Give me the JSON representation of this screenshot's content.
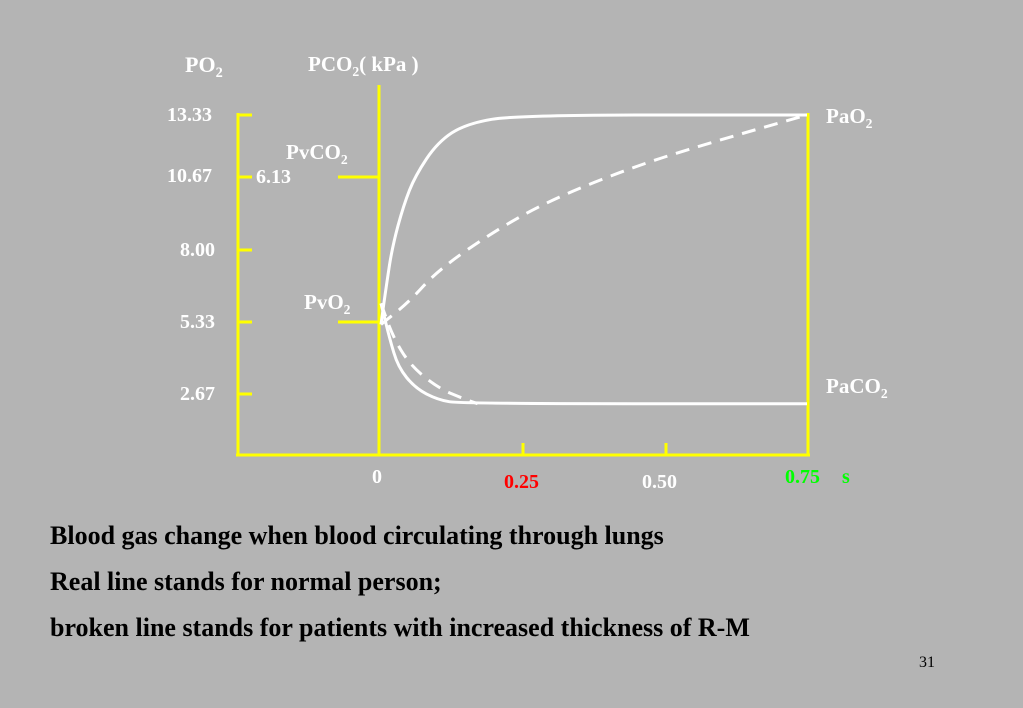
{
  "axes": {
    "po2_label": "PO",
    "po2_sub": "2",
    "pco2_label_a": "PCO",
    "pco2_sub": "2",
    "pco2_label_b": "( kPa )",
    "po2_ticks": [
      "13.33",
      "10.67",
      "8.00",
      "5.33",
      "2.67"
    ],
    "pco2_tick": "6.13",
    "time_ticks": [
      {
        "label": "0",
        "color": "#ffffff"
      },
      {
        "label": "0.25",
        "color": "#ff0000"
      },
      {
        "label": "0.50",
        "color": "#ffffff"
      },
      {
        "label": "0.75",
        "color": "#00ff00"
      }
    ],
    "time_unit": "s",
    "time_unit_color": "#00ff00"
  },
  "curve_labels": {
    "pvco2_a": "PvCO",
    "pvco2_sub": "2",
    "pvo2_a": "PvO",
    "pvo2_sub": "2",
    "pao2_a": "PaO",
    "pao2_sub": "2",
    "paco2_a": "PaCO",
    "paco2_sub": "2"
  },
  "colors": {
    "background": "#b4b4b4",
    "axis": "#ffff00",
    "curves": "#ffffff",
    "caption": "#000000"
  },
  "chart_data": {
    "type": "line",
    "x_unit": "s",
    "y_left_unit": "kPa",
    "x_ticks": [
      0,
      0.25,
      0.5,
      0.75
    ],
    "series": [
      {
        "name": "PaO2",
        "style": "solid",
        "points": [
          [
            0,
            5.33
          ],
          [
            0.01,
            6.9
          ],
          [
            0.02,
            8.3
          ],
          [
            0.04,
            9.9
          ],
          [
            0.06,
            11.0
          ],
          [
            0.1,
            12.3
          ],
          [
            0.15,
            13.0
          ],
          [
            0.24,
            13.33
          ],
          [
            0.75,
            13.33
          ]
        ]
      },
      {
        "name": "PaCO2",
        "style": "solid",
        "points": [
          [
            0,
            6.13
          ],
          [
            0.015,
            4.8
          ],
          [
            0.03,
            3.7
          ],
          [
            0.06,
            2.9
          ],
          [
            0.1,
            2.45
          ],
          [
            0.14,
            2.3
          ],
          [
            0.75,
            2.3
          ]
        ]
      },
      {
        "name": "PaO2",
        "style": "dashed",
        "points": [
          [
            0,
            5.33
          ],
          [
            0.05,
            6.2
          ],
          [
            0.1,
            7.4
          ],
          [
            0.2,
            8.9
          ],
          [
            0.3,
            10.1
          ],
          [
            0.45,
            11.4
          ],
          [
            0.6,
            12.4
          ],
          [
            0.75,
            13.33
          ]
        ]
      },
      {
        "name": "PaCO2",
        "style": "dashed",
        "points": [
          [
            0,
            6.13
          ],
          [
            0.02,
            4.9
          ],
          [
            0.05,
            3.8
          ],
          [
            0.1,
            2.9
          ],
          [
            0.15,
            2.45
          ],
          [
            0.17,
            2.3
          ]
        ]
      }
    ],
    "legend_note": "solid = normal person; dashed = increased R-M thickness"
  },
  "caption": {
    "line1": "Blood gas change when blood circulating through lungs",
    "line2": "Real line stands for normal person;",
    "line3": "broken line stands for patients with increased thickness of R-M"
  },
  "page_number": "31"
}
